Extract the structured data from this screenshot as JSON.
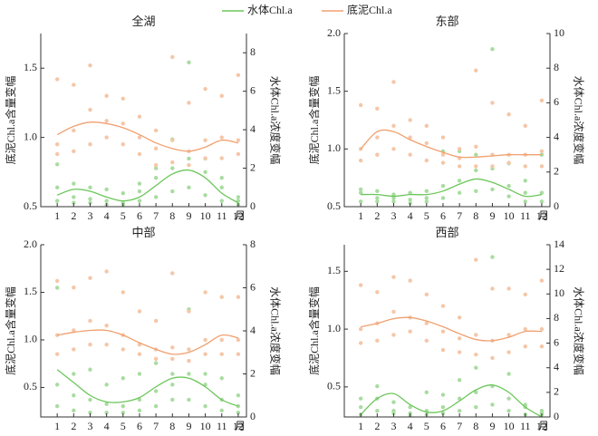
{
  "chart_data": [
    {
      "type": "scatter",
      "title": "全湖",
      "ylabel": "底泥Chl.a含量变幅",
      "y2label": "水体Chl.a浓度变幅",
      "x_unit": "月",
      "x": [
        1,
        2,
        3,
        4,
        5,
        6,
        7,
        8,
        9,
        10,
        11,
        12
      ],
      "xlim": [
        0,
        12.5
      ],
      "xticks": [
        1,
        2,
        3,
        4,
        5,
        6,
        7,
        8,
        9,
        10,
        11,
        12
      ],
      "ylim": [
        0.5,
        1.75
      ],
      "yticks": [
        0.5,
        {
          "value": 1.0,
          "label": "1.0"
        },
        1.5
      ],
      "y2lim": [
        0,
        9
      ],
      "y2ticks": [
        0,
        2,
        4,
        6,
        8
      ],
      "series": [
        {
          "name": "水体Chl.a",
          "color": "#6cc65a",
          "point_color": "#a8dca0",
          "axis": "y2",
          "points": [
            [
              0.3,
              1.0,
              2.2
            ],
            [
              0.5,
              1.2,
              0.2
            ],
            [
              0.4,
              1.0,
              0.2
            ],
            [
              0.3,
              0.9,
              0.1
            ],
            [
              0.2,
              0.7,
              0.1
            ],
            [
              0.3,
              1.2,
              0.8
            ],
            [
              0.5,
              1.5,
              2.0
            ],
            [
              0.8,
              2.0,
              3.5
            ],
            [
              1.0,
              2.5,
              7.5
            ],
            [
              0.6,
              1.8,
              2.5
            ],
            [
              0.3,
              1.0,
              1.5
            ],
            [
              0.1,
              0.5,
              0.3
            ]
          ],
          "curve": [
            0.6,
            0.9,
            0.8,
            0.5,
            0.3,
            0.5,
            1.1,
            1.7,
            1.9,
            1.5,
            0.7,
            0.2
          ]
        },
        {
          "name": "底泥Chl.a",
          "color": "#f0a070",
          "point_color": "#f5c6a8",
          "axis": "y",
          "points": [
            [
              1.42,
              0.95,
              0.88
            ],
            [
              1.38,
              1.05,
              0.9
            ],
            [
              1.52,
              1.2,
              0.95
            ],
            [
              1.3,
              1.12,
              1.0
            ],
            [
              1.28,
              1.1,
              0.95
            ],
            [
              1.15,
              1.0,
              0.88
            ],
            [
              1.05,
              0.92,
              0.8
            ],
            [
              1.58,
              0.98,
              0.82
            ],
            [
              1.25,
              0.9,
              0.8
            ],
            [
              1.35,
              0.98,
              0.85
            ],
            [
              1.3,
              1.0,
              0.85
            ],
            [
              1.45,
              0.98,
              0.88
            ]
          ],
          "curve": [
            1.02,
            1.08,
            1.11,
            1.1,
            1.07,
            1.02,
            0.96,
            0.92,
            0.9,
            0.93,
            0.98,
            0.96
          ]
        }
      ]
    },
    {
      "type": "scatter",
      "title": "东部",
      "ylabel": "底泥Chl.a含量变幅",
      "y2label": "水体Chl.a浓度变幅",
      "x_unit": "月",
      "x": [
        1,
        2,
        3,
        4,
        5,
        6,
        7,
        8,
        9,
        10,
        11,
        12
      ],
      "xlim": [
        0,
        12.5
      ],
      "xticks": [
        1,
        2,
        3,
        4,
        5,
        6,
        7,
        8,
        9,
        10,
        11,
        12
      ],
      "ylim": [
        0.5,
        2.0
      ],
      "yticks": [
        0.5,
        {
          "value": 1.0,
          "label": "1.0"
        },
        1.5,
        {
          "value": 2.0,
          "label": "2.0"
        }
      ],
      "y2lim": [
        0,
        10
      ],
      "y2ticks": [
        0,
        2,
        4,
        6,
        8,
        10
      ],
      "series": [
        {
          "color": "#6cc65a",
          "point_color": "#a8dca0",
          "axis": "y2",
          "points": [
            [
              0.3,
              0.8,
              1.0
            ],
            [
              0.5,
              0.9,
              0.3
            ],
            [
              0.3,
              0.7,
              0.5
            ],
            [
              0.4,
              0.8,
              0.2
            ],
            [
              0.5,
              0.9,
              0.3
            ],
            [
              0.5,
              1.2,
              3.2
            ],
            [
              0.8,
              1.5,
              3.2
            ],
            [
              0.9,
              2.1,
              3.0
            ],
            [
              1.0,
              2.2,
              9.1
            ],
            [
              0.6,
              1.2,
              2.5
            ],
            [
              0.3,
              0.8,
              1.5
            ],
            [
              0.3,
              0.8,
              3.0
            ]
          ],
          "curve": [
            0.7,
            0.7,
            0.6,
            0.7,
            0.7,
            0.9,
            1.3,
            1.6,
            1.4,
            1.0,
            0.6,
            0.7
          ]
        },
        {
          "color": "#f0a070",
          "point_color": "#f5c6a8",
          "axis": "y",
          "points": [
            [
              1.38,
              1.0,
              0.9
            ],
            [
              1.35,
              1.1,
              0.95
            ],
            [
              1.58,
              1.2,
              1.0
            ],
            [
              1.25,
              1.1,
              0.95
            ],
            [
              1.2,
              1.05,
              0.9
            ],
            [
              1.1,
              0.95,
              0.88
            ],
            [
              1.0,
              0.92,
              0.85
            ],
            [
              1.68,
              1.02,
              0.85
            ],
            [
              1.4,
              0.95,
              0.85
            ],
            [
              1.3,
              0.95,
              0.88
            ],
            [
              1.2,
              0.95,
              0.85
            ],
            [
              1.42,
              0.98,
              0.85
            ]
          ],
          "curve": [
            1.0,
            1.15,
            1.15,
            1.08,
            1.02,
            0.97,
            0.93,
            0.93,
            0.94,
            0.95,
            0.95,
            0.95
          ]
        }
      ]
    },
    {
      "type": "scatter",
      "title": "中部",
      "ylabel": "底泥Chl.a含量变幅",
      "y2label": "水体Chl.a浓度变幅",
      "x_unit": "月",
      "x": [
        1,
        2,
        3,
        4,
        5,
        6,
        7,
        8,
        9,
        10,
        11,
        12
      ],
      "xlim": [
        0,
        12.5
      ],
      "xticks": [
        1,
        2,
        3,
        4,
        5,
        6,
        7,
        8,
        9,
        10,
        11,
        12
      ],
      "ylim": [
        0.19,
        2.0
      ],
      "yticks": [
        0.5,
        {
          "value": 1.0,
          "label": "1.0"
        },
        1.5,
        {
          "value": 2.0,
          "label": "2.0"
        }
      ],
      "y2lim": [
        0,
        8
      ],
      "y2ticks": [
        0,
        2,
        4,
        6,
        8
      ],
      "series": [
        {
          "color": "#6cc65a",
          "point_color": "#a8dca0",
          "axis": "y2",
          "points": [
            [
              0.5,
              1.5,
              6.0
            ],
            [
              0.3,
              1.0,
              2.0
            ],
            [
              0.2,
              0.8,
              2.2
            ],
            [
              0.2,
              0.6,
              1.5
            ],
            [
              0.2,
              0.5,
              1.8
            ],
            [
              0.3,
              0.8,
              2.0
            ],
            [
              0.5,
              1.2,
              2.5
            ],
            [
              0.8,
              1.5,
              2.0
            ],
            [
              0.8,
              2.0,
              5.0
            ],
            [
              0.5,
              1.5,
              2.0
            ],
            [
              0.3,
              0.8,
              1.8
            ],
            [
              0.2,
              0.5,
              1.0
            ]
          ],
          "curve": [
            2.2,
            1.6,
            1.0,
            0.7,
            0.7,
            0.9,
            1.4,
            1.8,
            1.8,
            1.4,
            0.8,
            0.5
          ]
        },
        {
          "color": "#f0a070",
          "point_color": "#f5c6a8",
          "axis": "y",
          "points": [
            [
              1.62,
              1.05,
              0.85
            ],
            [
              1.55,
              1.1,
              0.9
            ],
            [
              1.65,
              1.2,
              0.95
            ],
            [
              1.72,
              1.15,
              0.95
            ],
            [
              1.5,
              1.05,
              0.9
            ],
            [
              1.3,
              0.95,
              0.85
            ],
            [
              1.2,
              0.9,
              0.8
            ],
            [
              1.7,
              0.92,
              0.8
            ],
            [
              1.3,
              0.9,
              0.78
            ],
            [
              1.5,
              1.0,
              0.85
            ],
            [
              1.45,
              1.0,
              0.85
            ],
            [
              1.45,
              1.0,
              0.85
            ]
          ],
          "curve": [
            1.05,
            1.08,
            1.1,
            1.1,
            1.05,
            0.97,
            0.9,
            0.85,
            0.87,
            0.95,
            1.05,
            1.02
          ]
        }
      ]
    },
    {
      "type": "scatter",
      "title": "西部",
      "ylabel": "底泥Chl.a含量变幅",
      "y2label": "水体Chl.a浓度变幅",
      "x_unit": "月",
      "x": [
        1,
        2,
        3,
        4,
        5,
        6,
        7,
        8,
        9,
        10,
        11,
        12
      ],
      "xlim": [
        0,
        12.5
      ],
      "xticks": [
        1,
        2,
        3,
        4,
        5,
        6,
        7,
        8,
        9,
        10,
        11,
        12
      ],
      "ylim": [
        0.24,
        1.73
      ],
      "yticks": [
        0.5,
        {
          "value": 1.0,
          "label": "1.0"
        },
        1.5
      ],
      "y2lim": [
        0,
        14
      ],
      "y2ticks": [
        0,
        2,
        4,
        6,
        8,
        10,
        12,
        14
      ],
      "series": [
        {
          "color": "#6cc65a",
          "point_color": "#a8dca0",
          "axis": "y2",
          "points": [
            [
              0.2,
              0.8,
              1.5
            ],
            [
              0.5,
              1.5,
              2.5
            ],
            [
              0.3,
              1.2,
              0.5
            ],
            [
              0.3,
              0.8,
              0.1
            ],
            [
              0.2,
              0.5,
              2.0
            ],
            [
              0.3,
              0.8,
              1.8
            ],
            [
              0.5,
              1.5,
              3.0
            ],
            [
              0.8,
              2.0,
              4.0
            ],
            [
              1.0,
              2.5,
              13.0
            ],
            [
              0.5,
              1.5,
              3.5
            ],
            [
              0.2,
              0.8,
              1.0
            ],
            [
              0.2,
              0.5,
              0.3
            ]
          ],
          "curve": [
            0.2,
            1.5,
            1.9,
            1.0,
            0.4,
            0.5,
            1.3,
            2.2,
            2.6,
            2.0,
            0.8,
            0.0
          ]
        },
        {
          "color": "#f0a070",
          "point_color": "#f5c6a8",
          "axis": "y",
          "points": [
            [
              1.38,
              1.0,
              0.88
            ],
            [
              1.32,
              1.05,
              0.9
            ],
            [
              1.45,
              1.15,
              0.95
            ],
            [
              1.42,
              1.1,
              0.98
            ],
            [
              1.3,
              1.05,
              0.9
            ],
            [
              1.2,
              0.98,
              0.82
            ],
            [
              1.1,
              0.92,
              0.8
            ],
            [
              1.6,
              0.95,
              0.78
            ],
            [
              1.35,
              0.9,
              0.75
            ],
            [
              1.35,
              0.95,
              0.8
            ],
            [
              1.3,
              1.0,
              0.85
            ],
            [
              1.42,
              1.0,
              0.85
            ]
          ],
          "curve": [
            1.02,
            1.05,
            1.09,
            1.1,
            1.07,
            1.02,
            0.96,
            0.91,
            0.9,
            0.93,
            0.98,
            0.98
          ]
        }
      ]
    }
  ]
}
